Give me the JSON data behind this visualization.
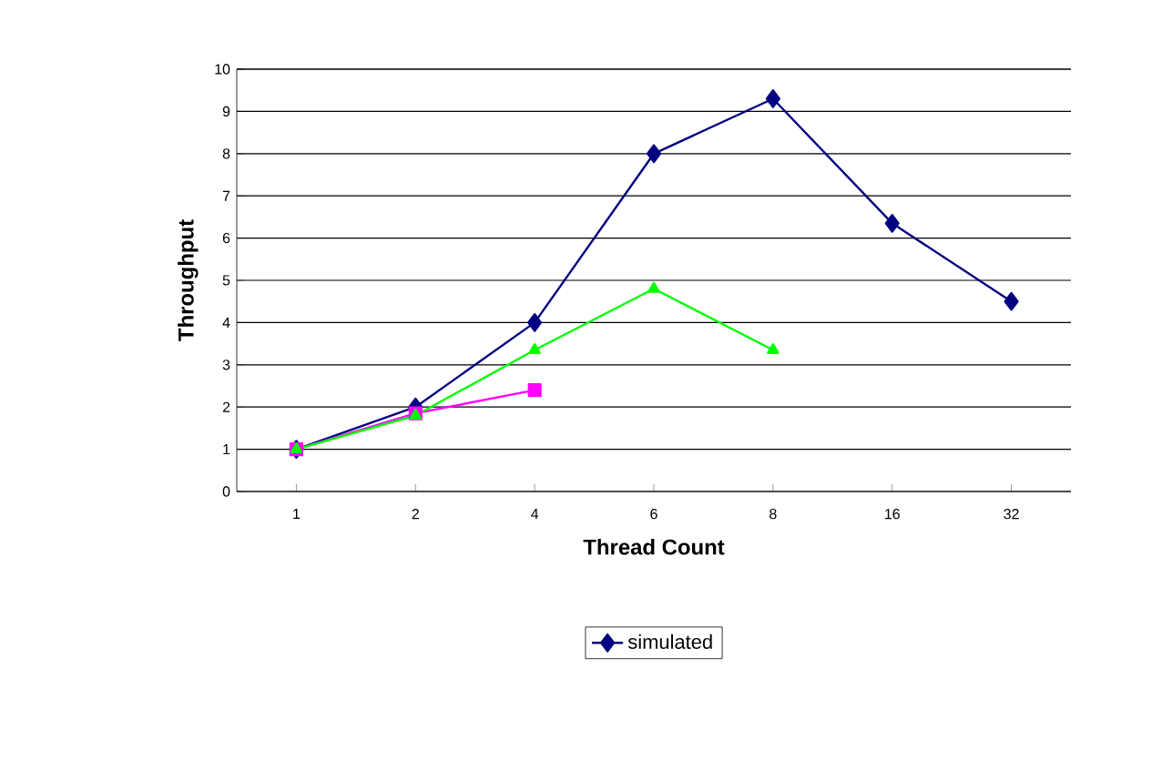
{
  "chart_data": {
    "type": "line",
    "xlabel": "Thread Count",
    "ylabel": "Throughput",
    "categories": [
      "1",
      "2",
      "4",
      "6",
      "8",
      "16",
      "32"
    ],
    "ylim": [
      0,
      10
    ],
    "yticks": [
      0,
      1,
      2,
      3,
      4,
      5,
      6,
      7,
      8,
      9,
      10
    ],
    "grid": "y",
    "legend": "bottom",
    "series": [
      {
        "name": "simulated",
        "color": "#000080",
        "marker": "diamond",
        "values": [
          1,
          2,
          4,
          8,
          9.3,
          6.35,
          4.5
        ]
      },
      {
        "color": "#ff00ff",
        "marker": "square",
        "values": [
          1,
          1.85,
          2.4,
          null,
          null,
          null,
          null
        ]
      },
      {
        "color": "#00ff00",
        "marker": "triangle",
        "values": [
          1,
          1.8,
          3.35,
          4.8,
          3.35,
          null,
          null
        ]
      }
    ]
  }
}
